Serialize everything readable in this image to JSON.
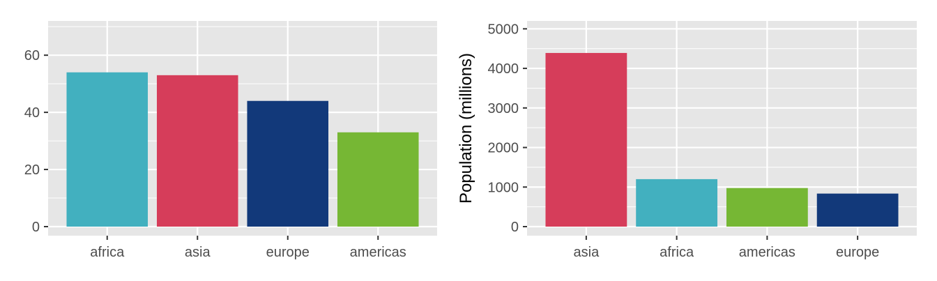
{
  "chart_data": [
    {
      "type": "bar",
      "title": "",
      "xlabel": "",
      "ylabel": "",
      "categories": [
        "africa",
        "asia",
        "europe",
        "americas"
      ],
      "values": [
        54,
        53,
        44,
        33
      ],
      "colors": [
        "#42b0bf",
        "#d63d5a",
        "#12397a",
        "#76b734"
      ],
      "ylim": [
        0,
        72
      ],
      "yticks": [
        0,
        20,
        40,
        60
      ],
      "grid": true,
      "legend": "none"
    },
    {
      "type": "bar",
      "title": "",
      "xlabel": "",
      "ylabel": "Population (millions)",
      "categories": [
        "asia",
        "africa",
        "americas",
        "europe"
      ],
      "values": [
        4390,
        1200,
        975,
        835
      ],
      "colors": [
        "#d63d5a",
        "#42b0bf",
        "#76b734",
        "#12397a"
      ],
      "ylim": [
        0,
        5200
      ],
      "yticks": [
        0,
        1000,
        2000,
        3000,
        4000,
        5000
      ],
      "grid": true,
      "legend": "none"
    }
  ]
}
